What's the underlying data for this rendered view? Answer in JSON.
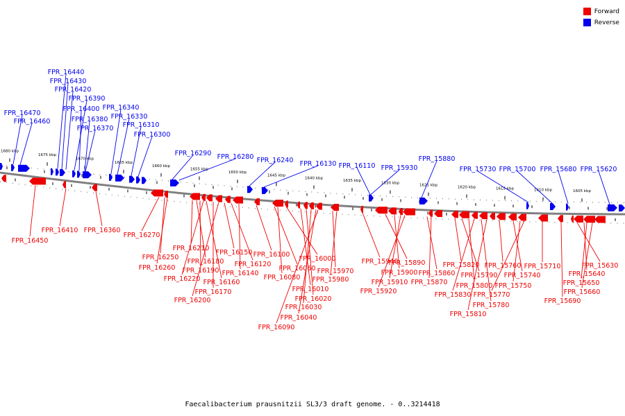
{
  "legend": {
    "forward": {
      "label": "Forward",
      "color": "#ee0000"
    },
    "reverse": {
      "label": "Reverse",
      "color": "#0000ee"
    }
  },
  "caption": "Faecalibacterium prausnitzii SL3/3 draft genome. - 0..3214418",
  "colors": {
    "forward": "#ee0000",
    "reverse": "#0000ee",
    "backbone": "#808080"
  },
  "scale_ticks": [
    "1680 kbp",
    "1675 kbp",
    "1670 kbp",
    "1665 kbp",
    "1660 kbp",
    "1655 kbp",
    "1650 kbp",
    "1645 kbp",
    "1640 kbp",
    "1635 kbp",
    "1630 kbp",
    "1625 kbp",
    "1620 kbp",
    "1615 kbp",
    "1610 kbp",
    "1605 kbp"
  ],
  "reverse_labels": [
    "FPR_16440",
    "FPR_16430",
    "FPR_16420",
    "FPR_16390",
    "FPR_16400",
    "FPR_16470",
    "FPR_16380",
    "FPR_16460",
    "FPR_16370",
    "FPR_16340",
    "FPR_16330",
    "FPR_16310",
    "FPR_16300",
    "FPR_16290",
    "FPR_16280",
    "FPR_16240",
    "FPR_16130",
    "FPR_16110",
    "FPR_15930",
    "FPR_15880",
    "FPR_15730",
    "FPR_15700",
    "FPR_15680",
    "FPR_15620"
  ],
  "forward_labels": [
    "FPR_16450",
    "FPR_16410",
    "FPR_16360",
    "FPR_16270",
    "FPR_16250",
    "FPR_16260",
    "FPR_16210",
    "FPR_16180",
    "FPR_16190",
    "FPR_16220",
    "FPR_16160",
    "FPR_16170",
    "FPR_16200",
    "FPR_16150",
    "FPR_16120",
    "FPR_16140",
    "FPR_16100",
    "FPR_16060",
    "FPR_16080",
    "FPR_16000",
    "FPR_16010",
    "FPR_16020",
    "FPR_16030",
    "FPR_16040",
    "FPR_16090",
    "FPR_15970",
    "FPR_15980",
    "FPR_15940",
    "FPR_15890",
    "FPR_15900",
    "FPR_15910",
    "FPR_15920",
    "FPR_15860",
    "FPR_15870",
    "FPR_15820",
    "FPR_15790",
    "FPR_15800",
    "FPR_15830",
    "FPR_15780",
    "FPR_15810",
    "FPR_15760",
    "FPR_15740",
    "FPR_15750",
    "FPR_15770",
    "FPR_15710",
    "FPR_15690",
    "FPR_15630",
    "FPR_15640",
    "FPR_15650",
    "FPR_15660"
  ]
}
